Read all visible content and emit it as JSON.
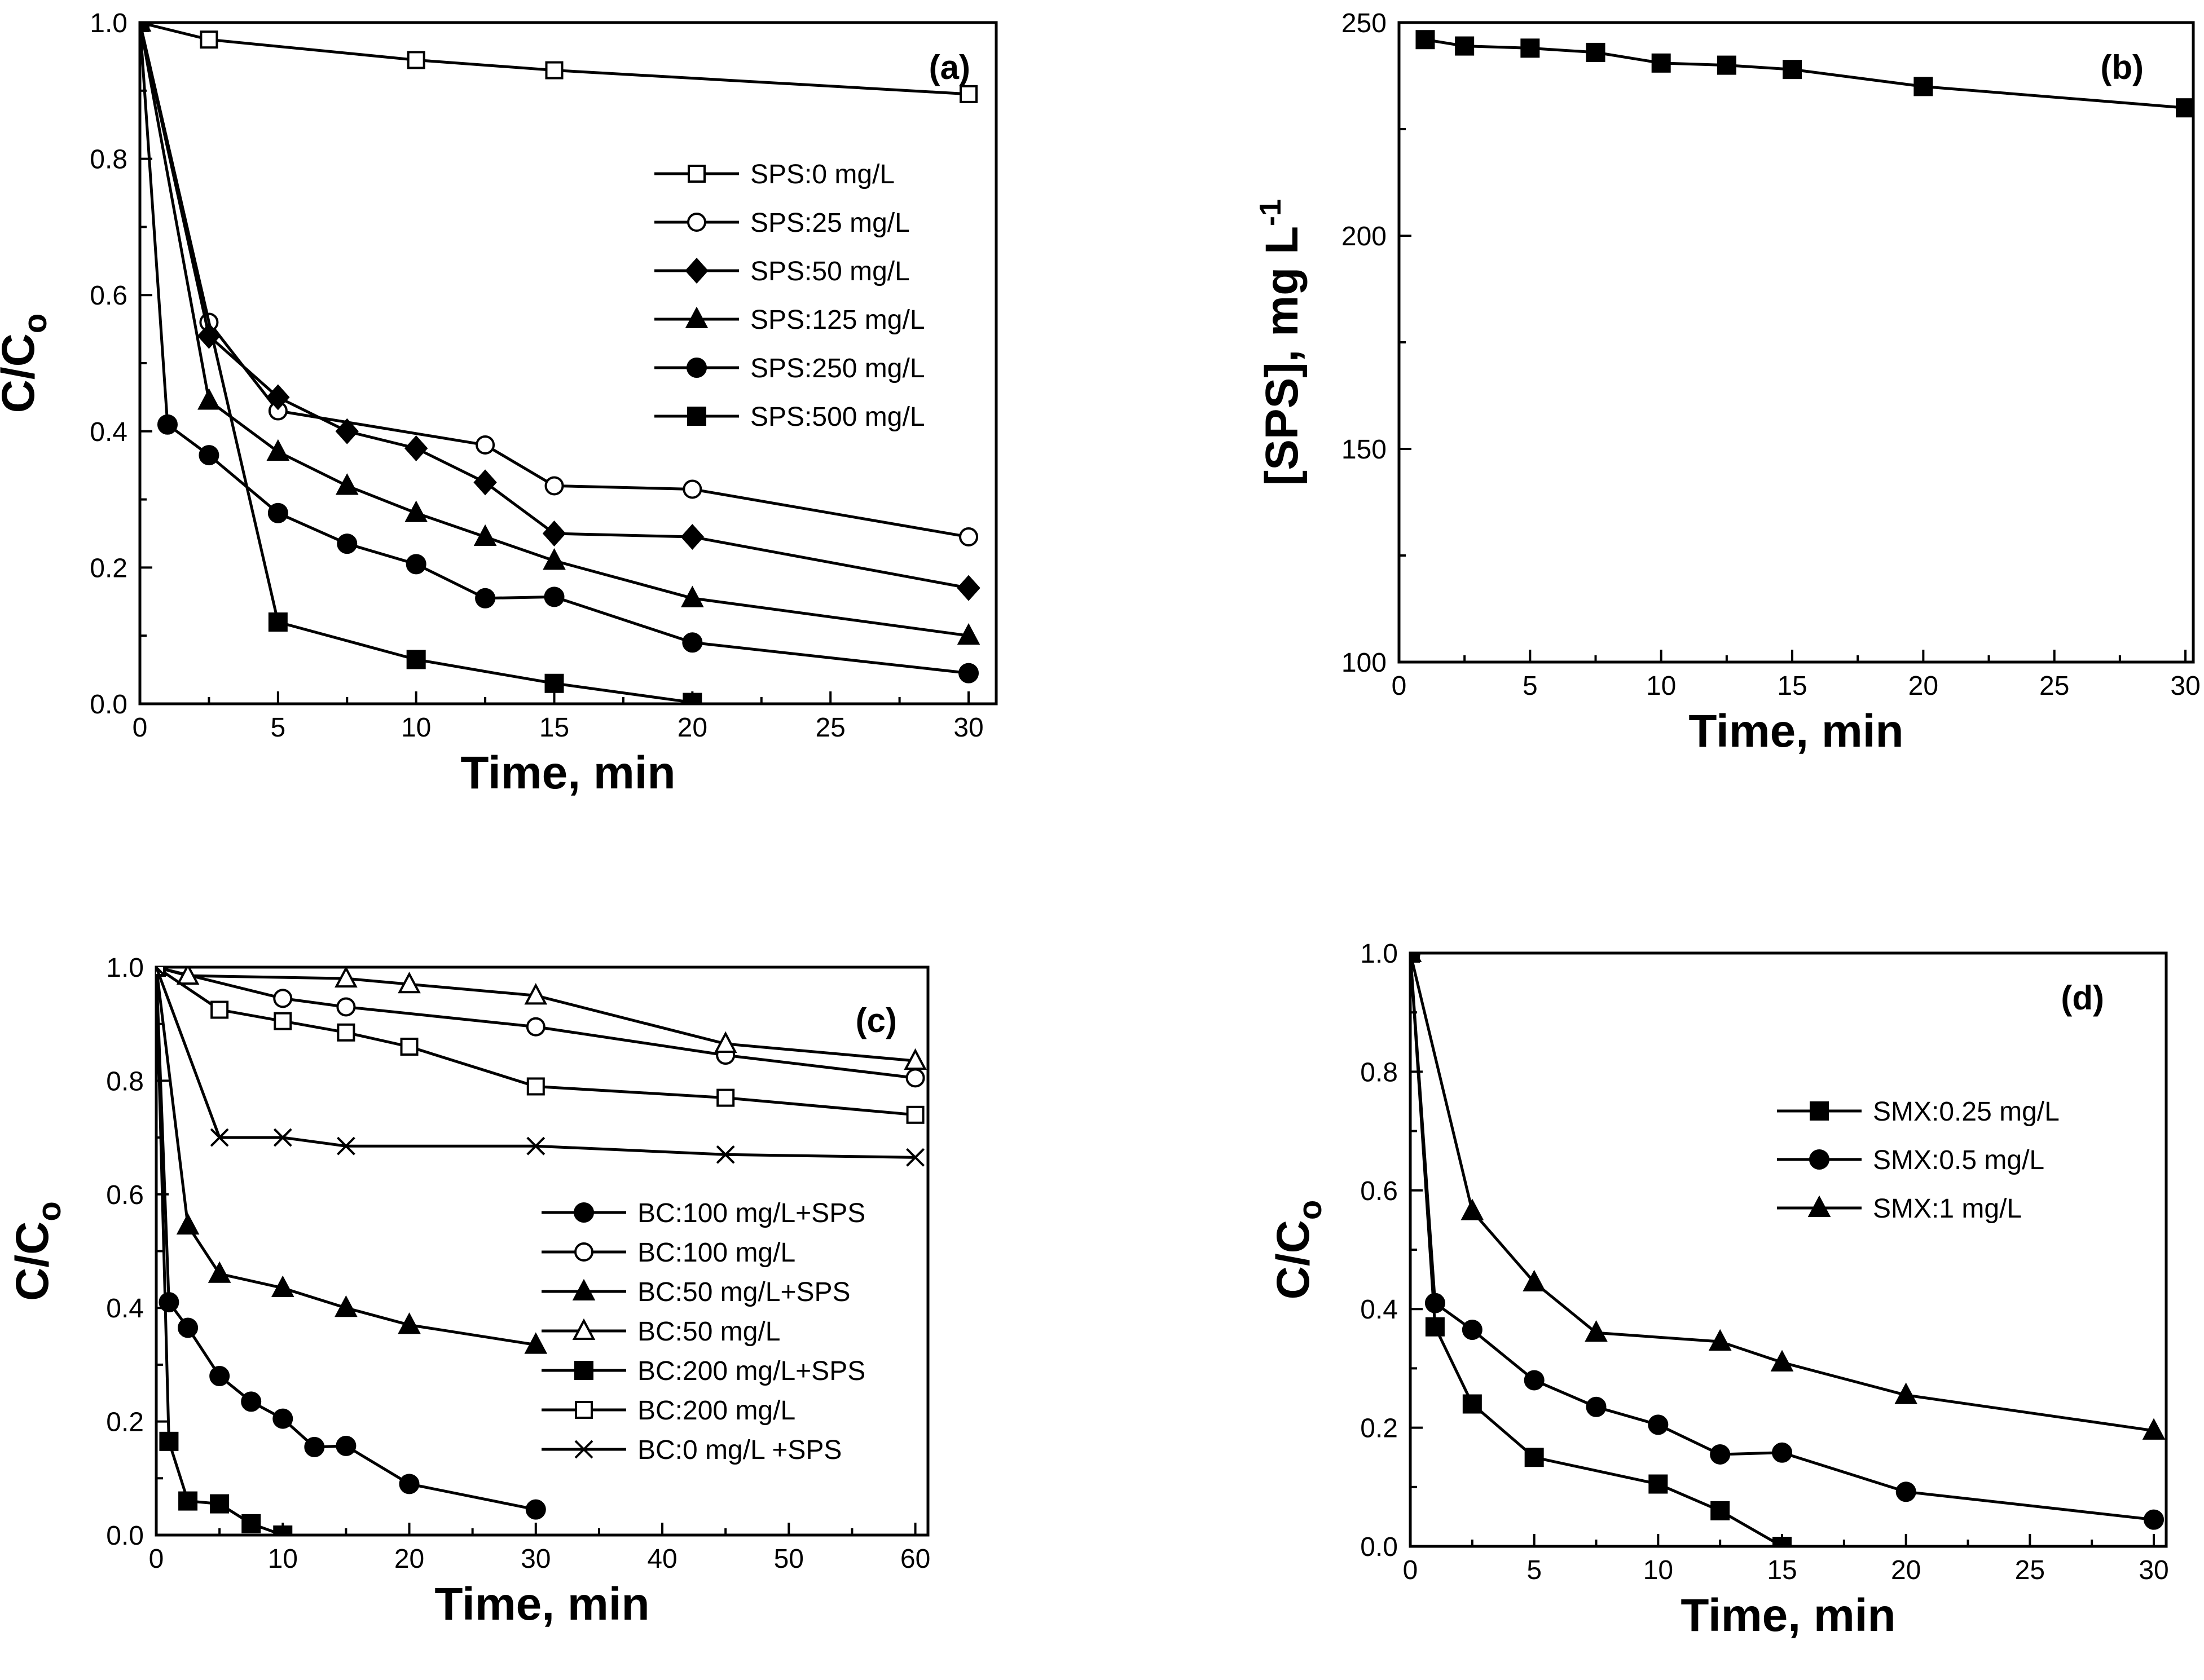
{
  "chart_data": [
    {
      "id": "a",
      "type": "line",
      "panel_label": "(a)",
      "xlabel": "Time, min",
      "ylabel": "C/C",
      "ylabel_sub": "o",
      "xlim": [
        0,
        31
      ],
      "ylim": [
        0,
        1.0
      ],
      "xticks": [
        0,
        5,
        10,
        15,
        20,
        25,
        30
      ],
      "yticks": [
        0.0,
        0.2,
        0.4,
        0.6,
        0.8,
        1.0
      ],
      "ytick_labels": [
        "0.0",
        "0.2",
        "0.4",
        "0.6",
        "0.8",
        "1.0"
      ],
      "legend_position": "upper-right",
      "series": [
        {
          "name": "SPS:0 mg/L",
          "marker": "square-open",
          "x": [
            0,
            2.5,
            10,
            15,
            30
          ],
          "y": [
            1.0,
            0.975,
            0.945,
            0.93,
            0.895
          ]
        },
        {
          "name": "SPS:25 mg/L",
          "marker": "circle-open",
          "x": [
            0,
            2.5,
            5,
            12.5,
            15,
            20,
            30
          ],
          "y": [
            1.0,
            0.56,
            0.43,
            0.38,
            0.32,
            0.315,
            0.245
          ]
        },
        {
          "name": "SPS:50 mg/L",
          "marker": "diamond",
          "x": [
            0,
            2.5,
            5,
            7.5,
            10,
            12.5,
            15,
            20,
            30
          ],
          "y": [
            1.0,
            0.54,
            0.45,
            0.4,
            0.375,
            0.325,
            0.25,
            0.245,
            0.17
          ]
        },
        {
          "name": "SPS:125 mg/L",
          "marker": "triangle",
          "x": [
            0,
            2.5,
            5,
            7.5,
            10,
            12.5,
            15,
            20,
            30
          ],
          "y": [
            1.0,
            0.445,
            0.37,
            0.32,
            0.28,
            0.245,
            0.21,
            0.155,
            0.1
          ]
        },
        {
          "name": "SPS:250 mg/L",
          "marker": "circle",
          "x": [
            0,
            1,
            2.5,
            5,
            7.5,
            10,
            12.5,
            15,
            20,
            30
          ],
          "y": [
            1.0,
            0.41,
            0.365,
            0.28,
            0.235,
            0.205,
            0.155,
            0.157,
            0.09,
            0.045
          ]
        },
        {
          "name": "SPS:500 mg/L",
          "marker": "square",
          "x": [
            0,
            5,
            10,
            15,
            20
          ],
          "y": [
            1.0,
            0.12,
            0.065,
            0.03,
            0.002
          ]
        }
      ]
    },
    {
      "id": "b",
      "type": "line",
      "panel_label": "(b)",
      "xlabel": "Time, min",
      "ylabel": "[SPS], mg L",
      "ylabel_sup": "-1",
      "xlim": [
        0,
        30.3
      ],
      "ylim": [
        100,
        250
      ],
      "xticks": [
        0,
        5,
        10,
        15,
        20,
        25,
        30
      ],
      "yticks": [
        100,
        150,
        200,
        250
      ],
      "ytick_labels": [
        "100",
        "150",
        "200",
        "250"
      ],
      "series": [
        {
          "name": "SPS",
          "marker": "square",
          "x": [
            1,
            2.5,
            5,
            7.5,
            10,
            12.5,
            15,
            20,
            30
          ],
          "y": [
            246,
            244.5,
            244,
            243,
            240.5,
            240,
            239,
            235,
            230
          ]
        }
      ]
    },
    {
      "id": "c",
      "type": "line",
      "panel_label": "(c)",
      "xlabel": "Time, min",
      "ylabel": "C/C",
      "ylabel_sub": "o",
      "xlim": [
        0,
        61
      ],
      "ylim": [
        0,
        1.0
      ],
      "xticks": [
        0,
        10,
        20,
        30,
        40,
        50,
        60
      ],
      "yticks": [
        0.0,
        0.2,
        0.4,
        0.6,
        0.8,
        1.0
      ],
      "ytick_labels": [
        "0.0",
        "0.2",
        "0.4",
        "0.6",
        "0.8",
        "1.0"
      ],
      "legend_position": "center-right",
      "series": [
        {
          "name": "BC:100 mg/L+SPS",
          "marker": "circle",
          "x": [
            0,
            1,
            2.5,
            5,
            7.5,
            10,
            12.5,
            15,
            20,
            30
          ],
          "y": [
            1.0,
            0.41,
            0.365,
            0.28,
            0.235,
            0.205,
            0.155,
            0.157,
            0.09,
            0.045
          ]
        },
        {
          "name": "BC:100 mg/L",
          "marker": "circle-open",
          "x": [
            0,
            10,
            15,
            30,
            45,
            60
          ],
          "y": [
            1.0,
            0.945,
            0.93,
            0.895,
            0.845,
            0.805
          ]
        },
        {
          "name": "BC:50 mg/L+SPS",
          "marker": "triangle",
          "x": [
            0,
            2.5,
            5,
            10,
            15,
            20,
            30
          ],
          "y": [
            1.0,
            0.545,
            0.46,
            0.435,
            0.4,
            0.37,
            0.335
          ]
        },
        {
          "name": "BC:50 mg/L",
          "marker": "triangle-open",
          "x": [
            0,
            2.5,
            15,
            20,
            30,
            45,
            60
          ],
          "y": [
            1.0,
            0.985,
            0.98,
            0.97,
            0.95,
            0.865,
            0.835
          ]
        },
        {
          "name": "BC:200 mg/L+SPS",
          "marker": "square",
          "x": [
            0,
            1,
            2.5,
            5,
            7.5,
            10
          ],
          "y": [
            1.0,
            0.165,
            0.06,
            0.055,
            0.02,
            0.0
          ]
        },
        {
          "name": "BC:200 mg/L",
          "marker": "square-open",
          "x": [
            0,
            5,
            10,
            15,
            20,
            30,
            45,
            60
          ],
          "y": [
            1.0,
            0.925,
            0.905,
            0.885,
            0.86,
            0.79,
            0.77,
            0.74
          ]
        },
        {
          "name": "BC:0 mg/L +SPS",
          "marker": "cross",
          "x": [
            0,
            5,
            10,
            15,
            30,
            45,
            60
          ],
          "y": [
            1.0,
            0.7,
            0.7,
            0.685,
            0.685,
            0.67,
            0.665
          ]
        }
      ]
    },
    {
      "id": "d",
      "type": "line",
      "panel_label": "(d)",
      "xlabel": "Time, min",
      "ylabel": "C/C",
      "ylabel_sub": "o",
      "xlim": [
        0,
        30.5
      ],
      "ylim": [
        0,
        1.0
      ],
      "xticks": [
        0,
        5,
        10,
        15,
        20,
        25,
        30
      ],
      "yticks": [
        0.0,
        0.2,
        0.4,
        0.6,
        0.8,
        1.0
      ],
      "ytick_labels": [
        "0.0",
        "0.2",
        "0.4",
        "0.6",
        "0.8",
        "1.0"
      ],
      "legend_position": "upper-right",
      "series": [
        {
          "name": "SMX:0.25 mg/L",
          "marker": "square",
          "x": [
            0,
            1,
            2.5,
            5,
            10,
            12.5,
            15
          ],
          "y": [
            1.0,
            0.37,
            0.24,
            0.15,
            0.105,
            0.06,
            0.0
          ]
        },
        {
          "name": "SMX:0.5 mg/L",
          "marker": "circle",
          "x": [
            0,
            1,
            2.5,
            5,
            7.5,
            10,
            12.5,
            15,
            20,
            30
          ],
          "y": [
            1.0,
            0.41,
            0.365,
            0.28,
            0.235,
            0.205,
            0.155,
            0.158,
            0.092,
            0.045
          ]
        },
        {
          "name": "SMX:1 mg/L",
          "marker": "triangle",
          "x": [
            0,
            2.5,
            5,
            7.5,
            12.5,
            15,
            20,
            30
          ],
          "y": [
            1.0,
            0.565,
            0.445,
            0.36,
            0.345,
            0.31,
            0.255,
            0.195
          ]
        }
      ]
    }
  ]
}
